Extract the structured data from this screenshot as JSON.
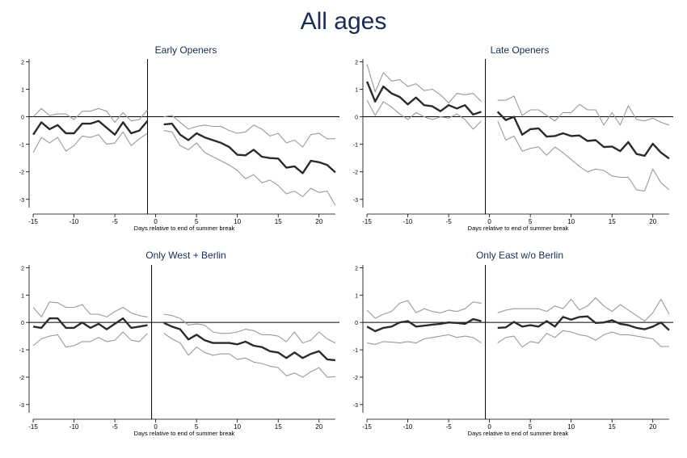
{
  "page_title": "All ages",
  "colors": {
    "title": "#1a2b55",
    "estimate": "#2b2b2b",
    "ci": "#9a9a9a",
    "axis": "#000000"
  },
  "chart_data": [
    {
      "type": "line",
      "title": "Early Openers",
      "xlabel": "Days relative to end of summer break",
      "ylabel": "",
      "xlim": [
        -15.5,
        22.5
      ],
      "ylim": [
        -3.3,
        2.1
      ],
      "xticks": [
        -15,
        -10,
        -5,
        0,
        5,
        10,
        15,
        20
      ],
      "yticks": [
        -3,
        -2,
        -1,
        0,
        1,
        2
      ],
      "hline": 0,
      "vline": -1,
      "series": [
        {
          "role": "upper",
          "x": [
            -15,
            -14,
            -13,
            -12,
            -11,
            -10,
            -9,
            -8,
            -7,
            -6,
            -5,
            -4,
            -3,
            -2,
            -1,
            1,
            2,
            3,
            4,
            5,
            6,
            7,
            8,
            9,
            10,
            11,
            12,
            13,
            14,
            15,
            16,
            17,
            18,
            19,
            20,
            21,
            22
          ],
          "y": [
            0.0,
            0.3,
            0.05,
            0.1,
            0.1,
            -0.1,
            0.2,
            0.2,
            0.3,
            0.2,
            -0.2,
            0.15,
            -0.15,
            -0.1,
            0.25,
            0.0,
            0.05,
            -0.2,
            -0.45,
            -0.35,
            -0.3,
            -0.35,
            -0.35,
            -0.5,
            -0.6,
            -0.55,
            -0.3,
            -0.45,
            -0.7,
            -0.6,
            -0.95,
            -0.85,
            -1.1,
            -0.65,
            -0.6,
            -0.8,
            -0.8
          ]
        },
        {
          "role": "estimate",
          "x": [
            -15,
            -14,
            -13,
            -12,
            -11,
            -10,
            -9,
            -8,
            -7,
            -6,
            -5,
            -4,
            -3,
            -2,
            -1,
            1,
            2,
            3,
            4,
            5,
            6,
            7,
            8,
            9,
            10,
            11,
            12,
            13,
            14,
            15,
            16,
            17,
            18,
            19,
            20,
            21,
            22
          ],
          "y": [
            -0.65,
            -0.2,
            -0.45,
            -0.3,
            -0.6,
            -0.6,
            -0.25,
            -0.25,
            -0.15,
            -0.4,
            -0.65,
            -0.2,
            -0.6,
            -0.5,
            -0.15,
            -0.28,
            -0.25,
            -0.65,
            -0.85,
            -0.6,
            -0.75,
            -0.85,
            -0.95,
            -1.1,
            -1.38,
            -1.4,
            -1.2,
            -1.45,
            -1.5,
            -1.52,
            -1.85,
            -1.8,
            -2.05,
            -1.6,
            -1.65,
            -1.75,
            -2.02
          ]
        },
        {
          "role": "lower",
          "x": [
            -15,
            -14,
            -13,
            -12,
            -11,
            -10,
            -9,
            -8,
            -7,
            -6,
            -5,
            -4,
            -3,
            -2,
            -1,
            1,
            2,
            3,
            4,
            5,
            6,
            7,
            8,
            9,
            10,
            11,
            12,
            13,
            14,
            15,
            16,
            17,
            18,
            19,
            20,
            21,
            22
          ],
          "y": [
            -1.3,
            -0.75,
            -0.95,
            -0.75,
            -1.25,
            -1.05,
            -0.7,
            -0.75,
            -0.65,
            -1.0,
            -0.95,
            -0.55,
            -1.05,
            -0.8,
            -0.6,
            -0.5,
            -0.55,
            -1.05,
            -1.2,
            -0.95,
            -1.3,
            -1.45,
            -1.6,
            -1.75,
            -1.95,
            -2.25,
            -2.1,
            -2.4,
            -2.3,
            -2.5,
            -2.8,
            -2.7,
            -2.9,
            -2.6,
            -2.75,
            -2.7,
            -3.22
          ]
        }
      ]
    },
    {
      "type": "line",
      "title": "Late Openers",
      "xlabel": "Days relative to end of summer break",
      "ylabel": "",
      "xlim": [
        -15.5,
        22.5
      ],
      "ylim": [
        -3.3,
        2.1
      ],
      "xticks": [
        -15,
        -10,
        -5,
        0,
        5,
        10,
        15,
        20
      ],
      "yticks": [
        -3,
        -2,
        -1,
        0,
        1,
        2
      ],
      "hline": 0,
      "vline": -0.5,
      "series": [
        {
          "role": "upper",
          "x": [
            -15,
            -14,
            -13,
            -12,
            -11,
            -10,
            -9,
            -8,
            -7,
            -6,
            -5,
            -4,
            -3,
            -2,
            -1,
            1,
            2,
            3,
            4,
            5,
            6,
            7,
            8,
            9,
            10,
            11,
            12,
            13,
            14,
            15,
            16,
            17,
            18,
            19,
            20,
            21,
            22
          ],
          "y": [
            1.9,
            0.9,
            1.6,
            1.3,
            1.35,
            1.1,
            1.2,
            0.95,
            1.0,
            0.8,
            0.5,
            0.85,
            0.8,
            0.85,
            0.55,
            0.6,
            0.6,
            0.75,
            0.05,
            0.25,
            0.25,
            0.05,
            -0.15,
            0.15,
            0.15,
            0.45,
            0.25,
            0.25,
            -0.3,
            0.15,
            -0.3,
            0.4,
            -0.1,
            -0.15,
            -0.05,
            -0.2,
            -0.3
          ]
        },
        {
          "role": "estimate",
          "x": [
            -15,
            -14,
            -13,
            -12,
            -11,
            -10,
            -9,
            -8,
            -7,
            -6,
            -5,
            -4,
            -3,
            -2,
            -1,
            1,
            2,
            3,
            4,
            5,
            6,
            7,
            8,
            9,
            10,
            11,
            12,
            13,
            14,
            15,
            16,
            17,
            18,
            19,
            20,
            21,
            22
          ],
          "y": [
            1.28,
            0.55,
            1.1,
            0.85,
            0.72,
            0.45,
            0.7,
            0.42,
            0.38,
            0.2,
            0.42,
            0.3,
            0.42,
            0.08,
            0.18,
            0.18,
            -0.12,
            0.0,
            -0.65,
            -0.45,
            -0.42,
            -0.72,
            -0.7,
            -0.6,
            -0.7,
            -0.68,
            -0.88,
            -0.85,
            -1.1,
            -1.08,
            -1.25,
            -0.92,
            -1.35,
            -1.42,
            -0.98,
            -1.3,
            -1.52
          ]
        },
        {
          "role": "lower",
          "x": [
            -15,
            -14,
            -13,
            -12,
            -11,
            -10,
            -9,
            -8,
            -7,
            -6,
            -5,
            -4,
            -3,
            -2,
            -1,
            1,
            2,
            3,
            4,
            5,
            6,
            7,
            8,
            9,
            10,
            11,
            12,
            13,
            14,
            15,
            16,
            17,
            18,
            19,
            20,
            21,
            22
          ],
          "y": [
            0.6,
            0.05,
            0.55,
            0.35,
            0.1,
            -0.1,
            0.15,
            0.0,
            -0.1,
            0.0,
            -0.05,
            0.1,
            -0.1,
            -0.45,
            -0.15,
            -0.15,
            -0.85,
            -0.7,
            -1.25,
            -1.15,
            -1.1,
            -1.4,
            -1.1,
            -1.3,
            -1.55,
            -1.8,
            -2.0,
            -1.9,
            -1.95,
            -2.15,
            -2.2,
            -2.2,
            -2.65,
            -2.7,
            -1.9,
            -2.4,
            -2.65
          ]
        }
      ]
    },
    {
      "type": "line",
      "title": "Only West + Berlin",
      "xlabel": "Days relative to end of summer break",
      "ylabel": "",
      "xlim": [
        -15.5,
        22.5
      ],
      "ylim": [
        -3.3,
        2.1
      ],
      "xticks": [
        -15,
        -10,
        -5,
        0,
        5,
        10,
        15,
        20
      ],
      "yticks": [
        -3,
        -2,
        -1,
        0,
        1,
        2
      ],
      "hline": 0,
      "vline": -0.5,
      "series": [
        {
          "role": "upper",
          "x": [
            -15,
            -14,
            -13,
            -12,
            -11,
            -10,
            -9,
            -8,
            -7,
            -6,
            -5,
            -4,
            -3,
            -2,
            -1,
            1,
            2,
            3,
            4,
            5,
            6,
            7,
            8,
            9,
            10,
            11,
            12,
            13,
            14,
            15,
            16,
            17,
            18,
            19,
            20,
            21,
            22
          ],
          "y": [
            0.55,
            0.2,
            0.75,
            0.72,
            0.55,
            0.55,
            0.65,
            0.3,
            0.3,
            0.2,
            0.4,
            0.55,
            0.35,
            0.25,
            0.2,
            0.3,
            0.25,
            0.15,
            -0.1,
            -0.05,
            -0.1,
            -0.35,
            -0.4,
            -0.4,
            -0.35,
            -0.25,
            -0.3,
            -0.45,
            -0.45,
            -0.5,
            -0.7,
            -0.35,
            -0.75,
            -0.65,
            -0.35,
            -0.6,
            -0.75
          ]
        },
        {
          "role": "estimate",
          "x": [
            -15,
            -14,
            -13,
            -12,
            -11,
            -10,
            -9,
            -8,
            -7,
            -6,
            -5,
            -4,
            -3,
            -2,
            -1,
            1,
            2,
            3,
            4,
            5,
            6,
            7,
            8,
            9,
            10,
            11,
            12,
            13,
            14,
            15,
            16,
            17,
            18,
            19,
            20,
            21,
            22
          ],
          "y": [
            -0.15,
            -0.2,
            0.15,
            0.15,
            -0.2,
            -0.2,
            0.0,
            -0.2,
            -0.05,
            -0.25,
            -0.05,
            0.15,
            -0.2,
            -0.15,
            -0.1,
            -0.02,
            -0.15,
            -0.25,
            -0.62,
            -0.45,
            -0.65,
            -0.75,
            -0.75,
            -0.75,
            -0.8,
            -0.7,
            -0.85,
            -0.9,
            -1.05,
            -1.1,
            -1.3,
            -1.1,
            -1.3,
            -1.15,
            -1.05,
            -1.35,
            -1.38
          ]
        },
        {
          "role": "lower",
          "x": [
            -15,
            -14,
            -13,
            -12,
            -11,
            -10,
            -9,
            -8,
            -7,
            -6,
            -5,
            -4,
            -3,
            -2,
            -1,
            1,
            2,
            3,
            4,
            5,
            6,
            7,
            8,
            9,
            10,
            11,
            12,
            13,
            14,
            15,
            16,
            17,
            18,
            19,
            20,
            21,
            22
          ],
          "y": [
            -0.85,
            -0.6,
            -0.5,
            -0.45,
            -0.9,
            -0.85,
            -0.7,
            -0.7,
            -0.55,
            -0.7,
            -0.65,
            -0.35,
            -0.65,
            -0.7,
            -0.4,
            -0.4,
            -0.6,
            -0.75,
            -1.2,
            -0.9,
            -1.1,
            -1.2,
            -1.15,
            -1.15,
            -1.35,
            -1.3,
            -1.45,
            -1.5,
            -1.6,
            -1.65,
            -1.95,
            -1.85,
            -2.0,
            -1.8,
            -1.65,
            -2.0,
            -1.98
          ]
        }
      ]
    },
    {
      "type": "line",
      "title": "Only East w/o Berlin",
      "xlabel": "Days relative to end of summer break",
      "ylabel": "",
      "xlim": [
        -15.5,
        22.5
      ],
      "ylim": [
        -3.3,
        2.1
      ],
      "xticks": [
        -15,
        -10,
        -5,
        0,
        5,
        10,
        15,
        20
      ],
      "yticks": [
        -3,
        -2,
        -1,
        0,
        1,
        2
      ],
      "hline": 0,
      "vline": -0.5,
      "series": [
        {
          "role": "upper",
          "x": [
            -15,
            -14,
            -13,
            -12,
            -11,
            -10,
            -9,
            -8,
            -7,
            -6,
            -5,
            -4,
            -3,
            -2,
            -1,
            1,
            2,
            3,
            4,
            5,
            6,
            7,
            8,
            9,
            10,
            11,
            12,
            13,
            14,
            15,
            16,
            17,
            18,
            19,
            20,
            21,
            22
          ],
          "y": [
            0.45,
            0.15,
            0.3,
            0.4,
            0.7,
            0.8,
            0.35,
            0.5,
            0.4,
            0.35,
            0.45,
            0.4,
            0.5,
            0.75,
            0.7,
            0.35,
            0.45,
            0.5,
            0.5,
            0.5,
            0.5,
            0.4,
            0.6,
            0.5,
            0.85,
            0.45,
            0.6,
            0.9,
            0.6,
            0.4,
            0.65,
            0.45,
            0.25,
            0.05,
            0.35,
            0.85,
            0.3
          ]
        },
        {
          "role": "estimate",
          "x": [
            -15,
            -14,
            -13,
            -12,
            -11,
            -10,
            -9,
            -8,
            -7,
            -6,
            -5,
            -4,
            -3,
            -2,
            -1,
            1,
            2,
            3,
            4,
            5,
            6,
            7,
            8,
            9,
            10,
            11,
            12,
            13,
            14,
            15,
            16,
            17,
            18,
            19,
            20,
            21,
            22
          ],
          "y": [
            -0.15,
            -0.32,
            -0.2,
            -0.15,
            0.0,
            0.05,
            -0.15,
            -0.12,
            -0.08,
            -0.05,
            0.0,
            -0.02,
            -0.05,
            0.12,
            0.05,
            -0.2,
            -0.18,
            0.02,
            -0.15,
            -0.1,
            -0.15,
            0.05,
            -0.15,
            0.2,
            0.1,
            0.2,
            0.22,
            -0.02,
            0.0,
            0.08,
            -0.05,
            -0.1,
            -0.2,
            -0.25,
            -0.15,
            0.0,
            -0.28
          ]
        },
        {
          "role": "lower",
          "x": [
            -15,
            -14,
            -13,
            -12,
            -11,
            -10,
            -9,
            -8,
            -7,
            -6,
            -5,
            -4,
            -3,
            -2,
            -1,
            1,
            2,
            3,
            4,
            5,
            6,
            7,
            8,
            9,
            10,
            11,
            12,
            13,
            14,
            15,
            16,
            17,
            18,
            19,
            20,
            21,
            22
          ],
          "y": [
            -0.75,
            -0.8,
            -0.7,
            -0.72,
            -0.75,
            -0.7,
            -0.75,
            -0.6,
            -0.55,
            -0.5,
            -0.45,
            -0.55,
            -0.5,
            -0.55,
            -0.75,
            -0.75,
            -0.55,
            -0.5,
            -0.9,
            -0.7,
            -0.75,
            -0.4,
            -0.55,
            -0.3,
            -0.35,
            -0.45,
            -0.5,
            -0.65,
            -0.45,
            -0.35,
            -0.45,
            -0.45,
            -0.5,
            -0.55,
            -0.6,
            -0.88,
            -0.88
          ]
        }
      ]
    }
  ]
}
